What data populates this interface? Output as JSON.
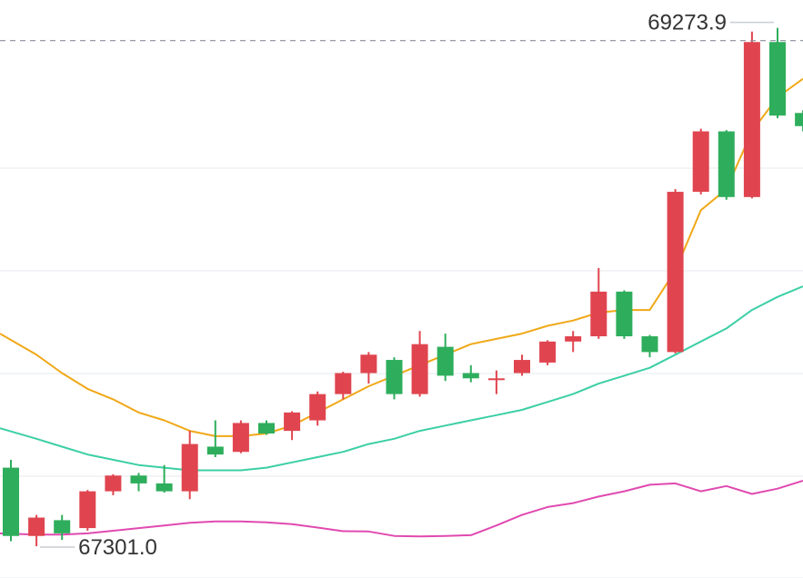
{
  "chart_data": {
    "type": "candlestick",
    "title": "",
    "xlabel": "",
    "ylabel": "",
    "ylim": [
      67180,
      69380
    ],
    "grid": true,
    "colors": {
      "up": "#e0454f",
      "down": "#2eae5c",
      "ma_short": "#f0a818",
      "ma_mid": "#3ccfa6",
      "ma_low": "#e04ab0",
      "grid": "#eef0f3",
      "dashed_line": "#8a8f99",
      "label_text": "#333333",
      "leader_line": "#c9ccd1"
    },
    "annotations": {
      "high_label": "69273.9",
      "high_value": 69273.9,
      "low_label": "67301.0",
      "low_value": 67301.0
    },
    "candles": [
      {
        "open": 67600,
        "close": 67340,
        "high": 67630,
        "low": 67320
      },
      {
        "open": 67340,
        "close": 67410,
        "high": 67420,
        "low": 67301
      },
      {
        "open": 67400,
        "close": 67350,
        "high": 67420,
        "low": 67325
      },
      {
        "open": 67370,
        "close": 67510,
        "high": 67515,
        "low": 67360
      },
      {
        "open": 67510,
        "close": 67570,
        "high": 67575,
        "low": 67495
      },
      {
        "open": 67570,
        "close": 67540,
        "high": 67580,
        "low": 67510
      },
      {
        "open": 67540,
        "close": 67510,
        "high": 67610,
        "low": 67505
      },
      {
        "open": 67510,
        "close": 67690,
        "high": 67740,
        "low": 67480
      },
      {
        "open": 67680,
        "close": 67650,
        "high": 67780,
        "low": 67640
      },
      {
        "open": 67660,
        "close": 67770,
        "high": 67780,
        "low": 67655
      },
      {
        "open": 67770,
        "close": 67730,
        "high": 67780,
        "low": 67725
      },
      {
        "open": 67740,
        "close": 67810,
        "high": 67815,
        "low": 67705
      },
      {
        "open": 67780,
        "close": 67880,
        "high": 67890,
        "low": 67760
      },
      {
        "open": 67880,
        "close": 67960,
        "high": 67965,
        "low": 67860
      },
      {
        "open": 67960,
        "close": 68030,
        "high": 68040,
        "low": 67920
      },
      {
        "open": 68010,
        "close": 67880,
        "high": 68020,
        "low": 67860
      },
      {
        "open": 67880,
        "close": 68070,
        "high": 68120,
        "low": 67870
      },
      {
        "open": 68060,
        "close": 67950,
        "high": 68110,
        "low": 67930
      },
      {
        "open": 67960,
        "close": 67940,
        "high": 67990,
        "low": 67925
      },
      {
        "open": 67940,
        "close": 67940,
        "high": 67970,
        "low": 67880
      },
      {
        "open": 67960,
        "close": 68010,
        "high": 68030,
        "low": 67950
      },
      {
        "open": 68000,
        "close": 68080,
        "high": 68085,
        "low": 67990
      },
      {
        "open": 68080,
        "close": 68100,
        "high": 68120,
        "low": 68040
      },
      {
        "open": 68100,
        "close": 68270,
        "high": 68360,
        "low": 68090
      },
      {
        "open": 68270,
        "close": 68100,
        "high": 68275,
        "low": 68090
      },
      {
        "open": 68100,
        "close": 68040,
        "high": 68105,
        "low": 68020
      },
      {
        "open": 68040,
        "close": 68650,
        "high": 68660,
        "low": 68035
      },
      {
        "open": 68650,
        "close": 68880,
        "high": 68890,
        "low": 68640
      },
      {
        "open": 68880,
        "close": 68630,
        "high": 68885,
        "low": 68620
      },
      {
        "open": 68630,
        "close": 69220,
        "high": 69260,
        "low": 68625
      },
      {
        "open": 69220,
        "close": 68940,
        "high": 69273.9,
        "low": 68930
      },
      {
        "open": 68950,
        "close": 68900,
        "high": 68960,
        "low": 68880
      }
    ],
    "series": [
      {
        "values": [
          68110,
          68030,
          67960,
          67900,
          67860,
          67810,
          67780,
          67740,
          67720,
          67720,
          67730,
          67760,
          67810,
          67860,
          67910,
          67950,
          67990,
          68030,
          68070,
          68090,
          68110,
          68140,
          68160,
          68190,
          68200,
          68200,
          68350,
          68580,
          68660,
          68880,
          69010,
          69080
        ]
      },
      {
        "values": [
          67750,
          67710,
          67680,
          67650,
          67630,
          67610,
          67600,
          67590,
          67590,
          67590,
          67600,
          67620,
          67640,
          67660,
          67690,
          67710,
          67740,
          67760,
          67780,
          67800,
          67820,
          67850,
          67880,
          67920,
          67950,
          67980,
          68030,
          68080,
          68130,
          68200,
          68250,
          68290
        ]
      },
      {
        "values": [
          67350,
          67345,
          67345,
          67350,
          67360,
          67370,
          67380,
          67390,
          67395,
          67395,
          67392,
          67385,
          67372,
          67358,
          67357,
          67340,
          67338,
          67340,
          67343,
          67380,
          67420,
          67450,
          67465,
          67490,
          67510,
          67535,
          67540,
          67510,
          67530,
          67500,
          67520,
          67550
        ]
      }
    ]
  }
}
